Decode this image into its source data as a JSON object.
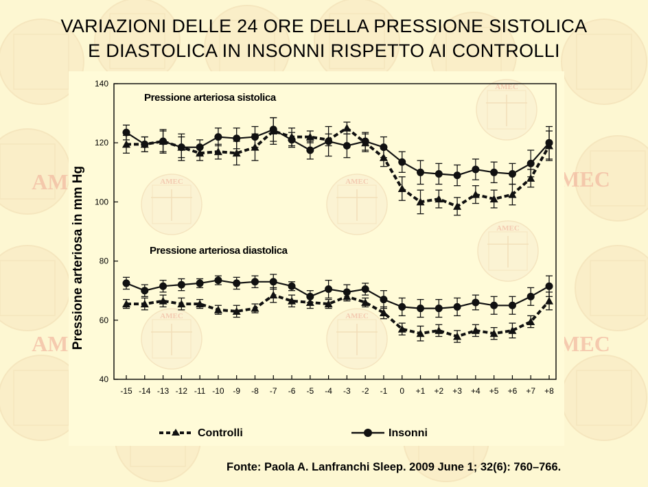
{
  "slide": {
    "title_line1": "VARIAZIONI DELLE 24 ORE  DELLA PRESSIONE SISTOLICA",
    "title_line2": "E DIASTOLICA IN INSONNI RISPETTO AI CONTROLLI",
    "source": "Fonte: Paola A. Lanfranchi Sleep. 2009 June 1; 32(6): 760–766.",
    "watermark_text": "AMEC",
    "background_color": "#fdf7d2",
    "watermark_color": "#f2b8a0"
  },
  "chart_data": {
    "type": "line",
    "ylabel": "Pressione arteriosa in mm Hg",
    "xlabel": "",
    "ylim": [
      40,
      140
    ],
    "yticks": [
      40,
      60,
      80,
      100,
      120,
      140
    ],
    "categories": [
      "-15",
      "-14",
      "-13",
      "-12",
      "-11",
      "-10",
      "-9",
      "-8",
      "-7",
      "-6",
      "-5",
      "-4",
      "-3",
      "-2",
      "-1",
      "0",
      "+1",
      "+2",
      "+3",
      "+4",
      "+5",
      "+6",
      "+7",
      "+8"
    ],
    "annotations": {
      "systolic": "Pressione arteriosa sistolica",
      "diastolic": "Pressione arteriosa diastolica"
    },
    "legend": {
      "placement": "bottom",
      "controlli": "Controlli",
      "insonni": "Insonni"
    },
    "series": [
      {
        "name": "Controlli",
        "group": "sistolica",
        "style": "dashed-triangle",
        "values": [
          119.5,
          119.5,
          120.5,
          118.5,
          116.5,
          117,
          116.5,
          118.5,
          124,
          122,
          122,
          121,
          125,
          120,
          115,
          104.5,
          100,
          101,
          98.5,
          102.5,
          101,
          102.5,
          108,
          119
        ],
        "errors": [
          3,
          2.5,
          4,
          4.5,
          2.5,
          2.5,
          4,
          4.5,
          4.5,
          3,
          2,
          2,
          2,
          3,
          3,
          4,
          4,
          3,
          3,
          3,
          3,
          3.5,
          3,
          5
        ]
      },
      {
        "name": "Insonni",
        "group": "sistolica",
        "style": "solid-circle",
        "values": [
          123.5,
          119.5,
          120.5,
          118.5,
          118.5,
          122,
          121.5,
          122,
          124.5,
          121,
          117.5,
          120.5,
          119,
          120.5,
          118.5,
          113.5,
          110,
          109.5,
          109,
          111,
          110,
          109.5,
          113,
          120
        ],
        "errors": [
          2.5,
          2.5,
          3.5,
          3.5,
          2.5,
          3,
          3.5,
          3.5,
          4,
          2.5,
          3,
          5,
          4,
          3,
          3.5,
          3.5,
          4,
          3.5,
          3.5,
          3.5,
          3.5,
          3.5,
          4.5,
          5.5
        ]
      },
      {
        "name": "Controlli",
        "group": "diastolica",
        "style": "dashed-triangle",
        "values": [
          65.5,
          65.5,
          66.5,
          65.5,
          65.5,
          63.5,
          63,
          64,
          68.5,
          66.5,
          66,
          65.5,
          68,
          66,
          62.5,
          57,
          55.5,
          56.5,
          54.5,
          56.5,
          55.5,
          56.5,
          59.5,
          66.5
        ],
        "errors": [
          1.5,
          2,
          2,
          2,
          1.5,
          1.5,
          2,
          1.5,
          2.5,
          2,
          2,
          1.5,
          1.5,
          1.5,
          2,
          2,
          2.5,
          2,
          2,
          2,
          2,
          2.5,
          2,
          3
        ]
      },
      {
        "name": "Insonni",
        "group": "diastolica",
        "style": "solid-circle",
        "values": [
          72.5,
          70,
          71.5,
          72,
          72.5,
          73.5,
          72.5,
          73,
          73,
          71.5,
          68,
          70.5,
          69.5,
          70.5,
          67,
          64.5,
          64,
          64,
          64.5,
          66,
          65,
          65,
          68,
          71.5
        ],
        "errors": [
          2,
          2,
          2,
          2,
          1.5,
          1.5,
          2,
          2,
          2.5,
          1.5,
          2,
          3,
          2.5,
          2,
          3,
          3,
          3,
          3,
          3,
          2.5,
          3,
          3,
          3,
          3.5
        ]
      }
    ]
  }
}
